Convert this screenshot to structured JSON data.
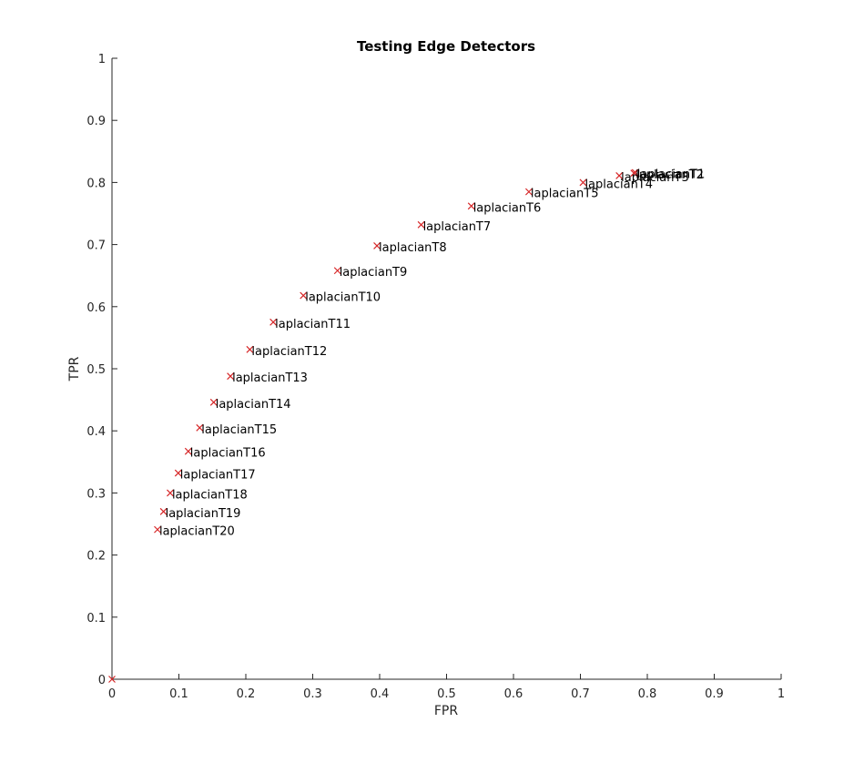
{
  "chart_data": {
    "type": "scatter",
    "title": "Testing Edge Detectors",
    "xlabel": "FPR",
    "ylabel": "TPR",
    "xlim": [
      0,
      1
    ],
    "ylim": [
      0,
      1
    ],
    "xticks": [
      "0",
      "0.1",
      "0.2",
      "0.3",
      "0.4",
      "0.5",
      "0.6",
      "0.7",
      "0.8",
      "0.9",
      "1"
    ],
    "yticks": [
      "0",
      "0.1",
      "0.2",
      "0.3",
      "0.4",
      "0.5",
      "0.6",
      "0.7",
      "0.8",
      "0.9",
      "1"
    ],
    "grid": false,
    "marker": "x",
    "marker_color": "#d62728",
    "points": [
      {
        "x": 0.0,
        "y": 0.0,
        "label": ""
      },
      {
        "x": 0.782,
        "y": 0.816,
        "label": "laplacianT1"
      },
      {
        "x": 0.78,
        "y": 0.815,
        "label": "laplacianT2"
      },
      {
        "x": 0.758,
        "y": 0.811,
        "label": "laplacianT3"
      },
      {
        "x": 0.704,
        "y": 0.8,
        "label": "laplacianT4"
      },
      {
        "x": 0.623,
        "y": 0.785,
        "label": "laplacianT5"
      },
      {
        "x": 0.537,
        "y": 0.762,
        "label": "laplacianT6"
      },
      {
        "x": 0.462,
        "y": 0.732,
        "label": "laplacianT7"
      },
      {
        "x": 0.396,
        "y": 0.698,
        "label": "laplacianT8"
      },
      {
        "x": 0.337,
        "y": 0.658,
        "label": "laplacianT9"
      },
      {
        "x": 0.286,
        "y": 0.618,
        "label": "laplacianT10"
      },
      {
        "x": 0.241,
        "y": 0.575,
        "label": "laplacianT11"
      },
      {
        "x": 0.206,
        "y": 0.531,
        "label": "laplacianT12"
      },
      {
        "x": 0.177,
        "y": 0.488,
        "label": "laplacianT13"
      },
      {
        "x": 0.152,
        "y": 0.446,
        "label": "laplacianT14"
      },
      {
        "x": 0.131,
        "y": 0.405,
        "label": "laplacianT15"
      },
      {
        "x": 0.114,
        "y": 0.367,
        "label": "laplacianT16"
      },
      {
        "x": 0.099,
        "y": 0.332,
        "label": "laplacianT17"
      },
      {
        "x": 0.087,
        "y": 0.3,
        "label": "laplacianT18"
      },
      {
        "x": 0.077,
        "y": 0.27,
        "label": "laplacianT19"
      },
      {
        "x": 0.068,
        "y": 0.241,
        "label": "laplacianT20"
      }
    ]
  }
}
